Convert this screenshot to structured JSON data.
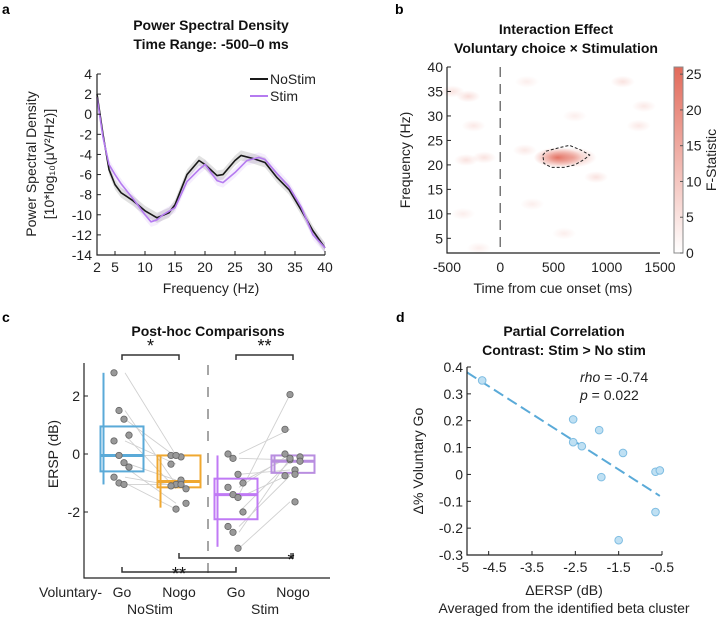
{
  "panels": {
    "a": {
      "label": "a",
      "title1": "Power Spectral Density",
      "title2": "Time Range: -500–0 ms"
    },
    "b": {
      "label": "b",
      "title1": "Interaction Effect",
      "title2": "Voluntary choice × Stimulation"
    },
    "c": {
      "label": "c",
      "title1": "Post-hoc Comparisons"
    },
    "d": {
      "label": "d",
      "title1": "Partial Correlation",
      "title2": "Contrast: Stim > No stim"
    }
  },
  "chart_data": [
    {
      "type": "line",
      "xlabel": "Frequency (Hz)",
      "ylabel1": "Power Spectral Density",
      "ylabel2": "[10*log₁₀(μV²/Hz)]",
      "xlim": [
        2,
        40
      ],
      "ylim": [
        -14,
        4
      ],
      "xticks": [
        2,
        5,
        10,
        15,
        20,
        25,
        30,
        35,
        40
      ],
      "yticks": [
        4,
        2,
        0,
        -2,
        -4,
        -6,
        -8,
        -10,
        -12,
        -14
      ],
      "legend_position": "top-right",
      "series": [
        {
          "name": "NoStim",
          "color": "#1a1a1a",
          "x": [
            2,
            3,
            4,
            5,
            6,
            8,
            10,
            12,
            14,
            15,
            17,
            19,
            20,
            22,
            23,
            25,
            26,
            28,
            30,
            32,
            34,
            36,
            38,
            40
          ],
          "y": [
            2,
            -2,
            -5.5,
            -7,
            -7.8,
            -8.6,
            -9.6,
            -10.3,
            -9.8,
            -9,
            -6,
            -4.6,
            -5,
            -6.1,
            -6,
            -4.6,
            -4.1,
            -4.4,
            -4.8,
            -6.3,
            -7.5,
            -9.5,
            -11.6,
            -13.3
          ]
        },
        {
          "name": "Stim",
          "color": "#b57bf0",
          "x": [
            2,
            3,
            4,
            5,
            6,
            8,
            10,
            11,
            12,
            13,
            15,
            17,
            19,
            20,
            22,
            23,
            25,
            27,
            29,
            30,
            32,
            34,
            36,
            38,
            40
          ],
          "y": [
            1.7,
            -2.3,
            -5,
            -6,
            -6.9,
            -8.4,
            -10,
            -10.7,
            -10.5,
            -10,
            -9.3,
            -6.7,
            -5.5,
            -5,
            -6.6,
            -6.8,
            -5.8,
            -4.6,
            -4.3,
            -4.5,
            -5.9,
            -7.2,
            -9.2,
            -12,
            -13.3
          ]
        }
      ]
    },
    {
      "type": "heatmap",
      "xlabel": "Time from cue onset (ms)",
      "ylabel": "Frequency (Hz)",
      "colorbar_label": "F-Statistic",
      "xlim": [
        -500,
        1500
      ],
      "ylim": [
        2,
        40
      ],
      "clim": [
        0,
        26
      ],
      "xticks": [
        -500,
        0,
        500,
        1000,
        1500
      ],
      "yticks": [
        5,
        10,
        15,
        20,
        25,
        30,
        35,
        40
      ],
      "cticks": [
        0,
        5,
        10,
        15,
        20,
        25
      ],
      "cue_onset_ms": 0,
      "color_max": "#e26a5a",
      "hotspots": [
        {
          "t": 540,
          "f": 21.5,
          "F": 24
        },
        {
          "t": 680,
          "f": 21.5,
          "F": 12
        },
        {
          "t": -450,
          "f": 35,
          "F": 5
        },
        {
          "t": -300,
          "f": 34,
          "F": 6
        },
        {
          "t": -250,
          "f": 28,
          "F": 4
        },
        {
          "t": -320,
          "f": 21,
          "F": 5
        },
        {
          "t": -150,
          "f": 21.5,
          "F": 5
        },
        {
          "t": 230,
          "f": 23,
          "F": 4
        },
        {
          "t": 900,
          "f": 17.5,
          "F": 5
        },
        {
          "t": 1150,
          "f": 37,
          "F": 5
        },
        {
          "t": 1350,
          "f": 32,
          "F": 4
        },
        {
          "t": 1300,
          "f": 28,
          "F": 4
        },
        {
          "t": 250,
          "f": 37,
          "F": 3
        },
        {
          "t": 700,
          "f": 30,
          "F": 3
        },
        {
          "t": -200,
          "f": 3,
          "F": 3
        },
        {
          "t": 600,
          "f": 6,
          "F": 3
        },
        {
          "t": 300,
          "f": 12,
          "F": 3
        },
        {
          "t": -350,
          "f": 10,
          "F": 3
        }
      ],
      "cluster_outline": [
        [
          400,
          22
        ],
        [
          430,
          22.8
        ],
        [
          550,
          23.5
        ],
        [
          650,
          24
        ],
        [
          760,
          23
        ],
        [
          840,
          22
        ],
        [
          780,
          21
        ],
        [
          700,
          20
        ],
        [
          600,
          19.5
        ],
        [
          480,
          19.5
        ],
        [
          410,
          20.3
        ]
      ]
    },
    {
      "type": "box",
      "ylabel": "ERSP (dB)",
      "ylim": [
        -4.3,
        3.1
      ],
      "yticks": [
        2,
        0,
        -2
      ],
      "prefix_label": "Voluntary-",
      "groups": [
        "NoStim",
        "Stim"
      ],
      "categories": [
        {
          "label": "Go",
          "group": "NoStim",
          "color": "#5aaad8",
          "q1": -0.6,
          "median": -0.05,
          "q3": 0.95,
          "wlo": -1.05,
          "whi": 2.8,
          "points": [
            2.8,
            1.5,
            1.2,
            0.65,
            0.45,
            -0.05,
            -0.3,
            -0.45,
            -0.8,
            -1.0,
            -1.05
          ]
        },
        {
          "label": "Nogo",
          "group": "NoStim",
          "color": "#f0a830",
          "q1": -1.15,
          "median": -0.95,
          "q3": -0.05,
          "wlo": -1.85,
          "whi": -0.05,
          "points": [
            -0.05,
            -1.05,
            -0.1,
            -1.2,
            -0.35,
            -0.05,
            -0.9,
            -1.7,
            -1.1,
            -1.9,
            -1.05
          ]
        },
        {
          "label": "Go",
          "group": "Stim",
          "color": "#c07af5",
          "q1": -2.25,
          "median": -1.4,
          "q3": -0.85,
          "wlo": -3.2,
          "whi": -0.05,
          "points": [
            0,
            -0.15,
            -0.7,
            -1.0,
            -1.15,
            -1.4,
            -1.5,
            -2.0,
            -2.5,
            -2.7,
            -3.25
          ]
        },
        {
          "label": "Nogo",
          "group": "Stim",
          "color": "#b98ee0",
          "q1": -0.65,
          "median": -0.25,
          "q3": -0.05,
          "wlo": -0.65,
          "whi": -0.05,
          "points": [
            0.85,
            -0.2,
            -0.55,
            -0.1,
            0,
            2.05,
            -0.7,
            -0.25,
            -0.75,
            -0.15,
            -1.65
          ]
        }
      ],
      "significance": [
        {
          "from": 0,
          "to": 1,
          "label": "*",
          "position": "top"
        },
        {
          "from": 2,
          "to": 3,
          "label": "**",
          "position": "top"
        },
        {
          "from": 1,
          "to": 3,
          "label": "*",
          "position": "bottom"
        },
        {
          "from": 0,
          "to": 2,
          "label": "**",
          "position": "bottom"
        }
      ]
    },
    {
      "type": "scatter",
      "xlabel": "ΔERSP (dB)",
      "xsublabel": "Averaged from the identified beta cluster",
      "ylabel": "Δ% Voluntary Go",
      "xlim": [
        -5,
        -0.5
      ],
      "ylim": [
        -0.3,
        0.4
      ],
      "xticks": [
        -5,
        -4.5,
        -3.5,
        -2.5,
        -1.5,
        -0.5
      ],
      "yticks": [
        0.4,
        0.3,
        0.2,
        0.1,
        0,
        -0.1,
        -0.2,
        -0.3
      ],
      "color": "#5aaad8",
      "points": [
        [
          -4.65,
          0.35
        ],
        [
          -2.55,
          0.205
        ],
        [
          -2.55,
          0.12
        ],
        [
          -2.35,
          0.105
        ],
        [
          -1.95,
          0.165
        ],
        [
          -1.9,
          -0.01
        ],
        [
          -1.4,
          0.08
        ],
        [
          -1.5,
          -0.245
        ],
        [
          -0.65,
          0.01
        ],
        [
          -0.55,
          0.015
        ],
        [
          -0.65,
          -0.14
        ]
      ],
      "fit": [
        [
          -5,
          0.38
        ],
        [
          -0.55,
          -0.08
        ]
      ],
      "stats": {
        "rho_label": "rho",
        "rho_value": " = -0.74",
        "p_label": "p",
        "p_value": " = 0.022"
      }
    }
  ]
}
